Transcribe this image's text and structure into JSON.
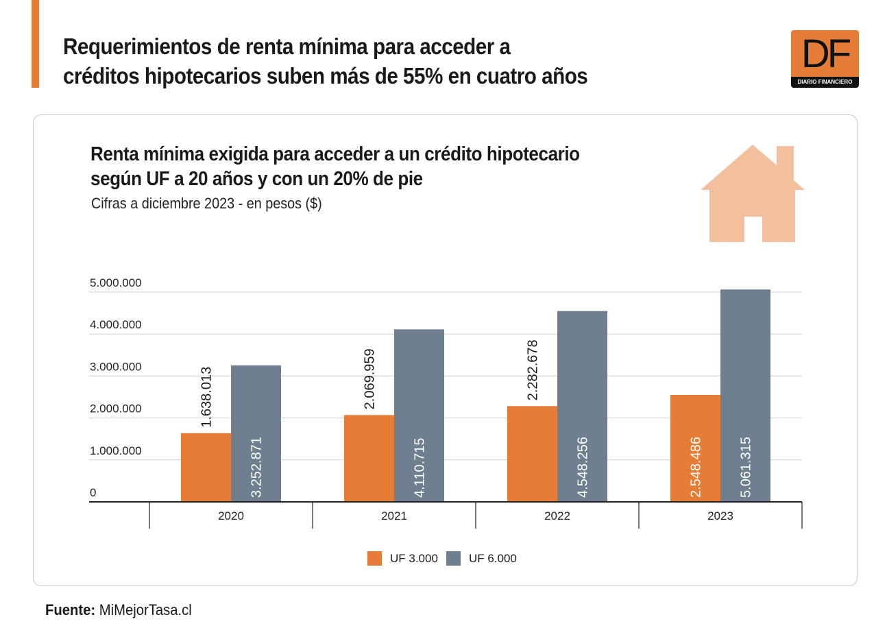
{
  "header": {
    "headline_line1": "Requerimientos de renta mínima para acceder a",
    "headline_line2": "créditos hipotecarios suben más de 55% en cuatro años",
    "logo_letters": "DF",
    "logo_subtitle": "DIARIO FINANCIERO"
  },
  "colors": {
    "accent": "#e57d36",
    "series_uf3000": "#e57d36",
    "series_uf6000": "#6e7f8f",
    "house": "#f3bf9c",
    "grid": "#cfcfcf",
    "axis": "#222222"
  },
  "chart_data": {
    "type": "bar",
    "title_line1": "Renta mínima exigida para acceder a un crédito hipotecario",
    "title_line2": "según UF a 20 años y con un 20% de pie",
    "subtitle": "Cifras a diciembre 2023 - en pesos ($)",
    "categories": [
      "2020",
      "2021",
      "2022",
      "2023"
    ],
    "series": [
      {
        "name": "UF 3.000",
        "values": [
          1638013,
          2069959,
          2282678,
          2548486
        ],
        "labels": [
          "1.638.013",
          "2.069.959",
          "2.282.678",
          "2.548.486"
        ]
      },
      {
        "name": "UF 6.000",
        "values": [
          3252871,
          4110715,
          4548256,
          5061315
        ],
        "labels": [
          "3.252.871",
          "4.110.715",
          "4.548.256",
          "5.061.315"
        ]
      }
    ],
    "y_ticks": [
      0,
      1000000,
      2000000,
      3000000,
      4000000,
      5000000
    ],
    "y_tick_labels": [
      "0",
      "1.000.000",
      "2.000.000",
      "3.000.000",
      "4.000.000",
      "5.000.000"
    ],
    "ylim": [
      0,
      5000000
    ],
    "grid": true,
    "legend_position": "bottom-center"
  },
  "footer": {
    "source_label": "Fuente:",
    "source_value": "MiMejorTasa.cl"
  }
}
